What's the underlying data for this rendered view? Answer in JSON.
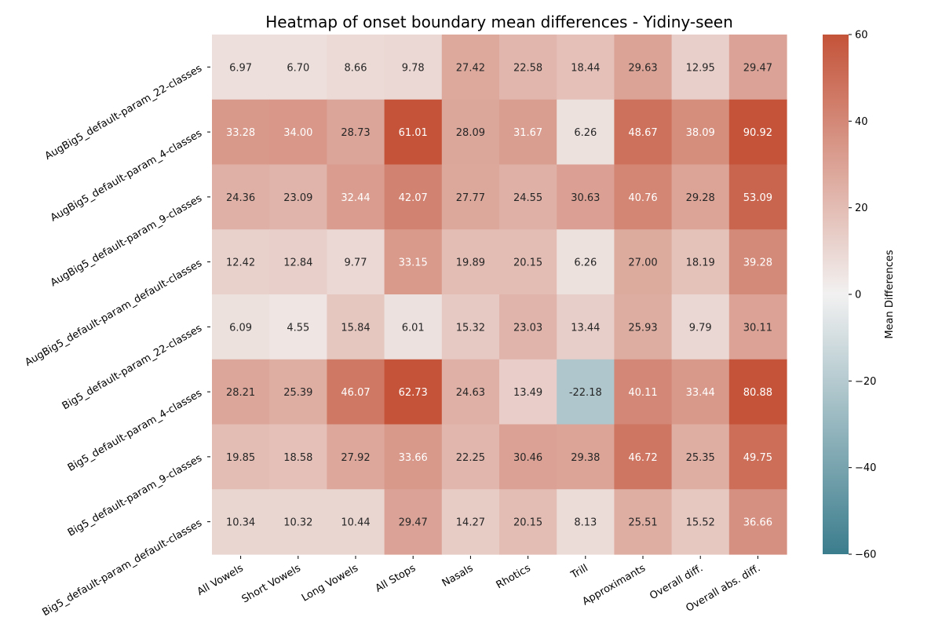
{
  "chart_data": {
    "type": "heatmap",
    "title": "Heatmap of onset boundary mean differences - Yidiny-seen",
    "columns": [
      "All Vowels",
      "Short Vowels",
      "Long Vowels",
      "All Stops",
      "Nasals",
      "Rhotics",
      "Trill",
      "Approximants",
      "Overall diff.",
      "Overall abs. diff."
    ],
    "rows": [
      "AugBig5_default-param_22-classes",
      "AugBig5_default-param_4-classes",
      "AugBig5_default-param_9-classes",
      "AugBig5_default-param_default-classes",
      "Big5_default-param_22-classes",
      "Big5_default-param_4-classes",
      "Big5_default-param_9-classes",
      "Big5_default-param_default-classes"
    ],
    "values": [
      [
        6.97,
        6.7,
        8.66,
        9.78,
        27.42,
        22.58,
        18.44,
        29.63,
        12.95,
        29.47
      ],
      [
        33.28,
        34.0,
        28.73,
        61.01,
        28.09,
        31.67,
        6.26,
        48.67,
        38.09,
        90.92
      ],
      [
        24.36,
        23.09,
        32.44,
        42.07,
        27.77,
        24.55,
        30.63,
        40.76,
        29.28,
        53.09
      ],
      [
        12.42,
        12.84,
        9.77,
        33.15,
        19.89,
        20.15,
        6.26,
        27.0,
        18.19,
        39.28
      ],
      [
        6.09,
        4.55,
        15.84,
        6.01,
        15.32,
        23.03,
        13.44,
        25.93,
        9.79,
        30.11
      ],
      [
        28.21,
        25.39,
        46.07,
        62.73,
        24.63,
        13.49,
        -22.18,
        40.11,
        33.44,
        80.88
      ],
      [
        19.85,
        18.58,
        27.92,
        33.66,
        22.25,
        30.46,
        29.38,
        46.72,
        25.35,
        49.75
      ],
      [
        10.34,
        10.32,
        10.44,
        29.47,
        14.27,
        20.15,
        8.13,
        25.51,
        15.52,
        36.66
      ]
    ],
    "vmin": -60,
    "vmax": 60,
    "colorbar_label": "Mean Differences",
    "colorbar_ticks": [
      -60,
      -40,
      -20,
      0,
      20,
      40,
      60
    ],
    "colormap": {
      "low": "#3b7d8d",
      "mid": "#f2f1f1",
      "high": "#c45339"
    }
  }
}
